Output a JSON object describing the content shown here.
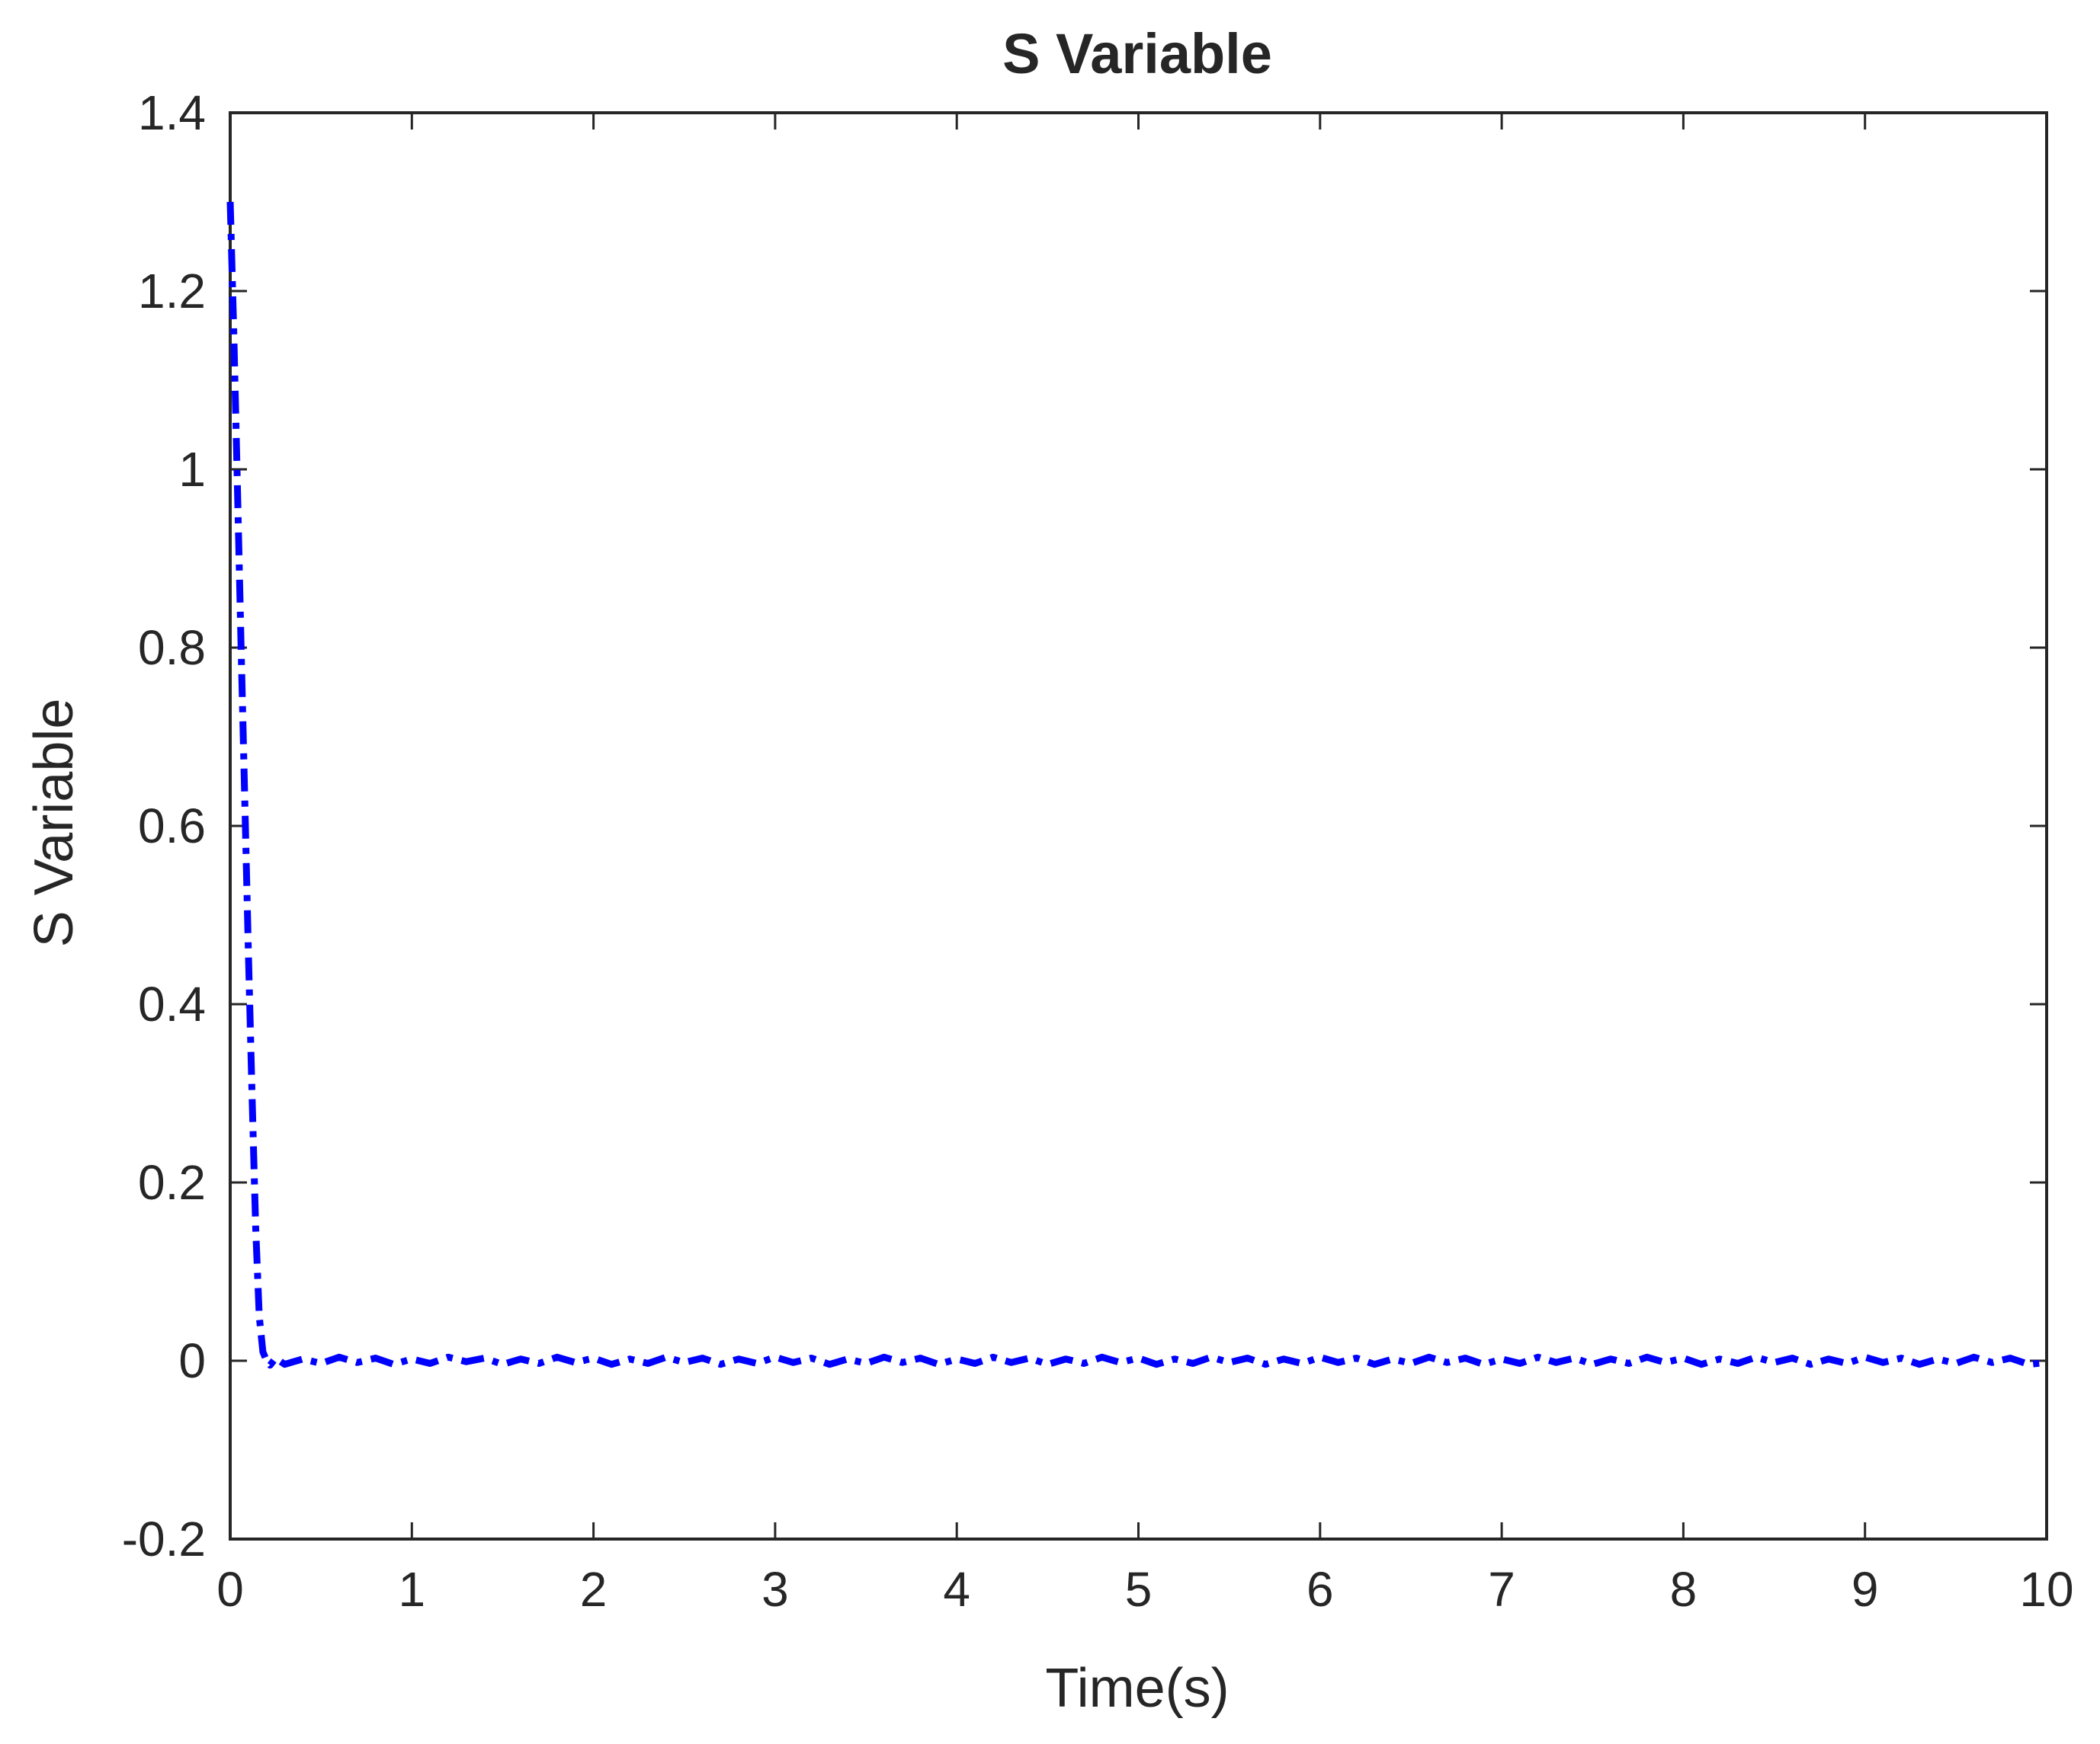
{
  "chart_data": {
    "type": "line",
    "title": "S Variable",
    "xlabel": "Time(s)",
    "ylabel": "S Variable",
    "xlim": [
      0,
      10
    ],
    "ylim": [
      -0.2,
      1.4
    ],
    "xticks": [
      0,
      1,
      2,
      3,
      4,
      5,
      6,
      7,
      8,
      9,
      10
    ],
    "xtick_labels": [
      "0",
      "1",
      "2",
      "3",
      "4",
      "5",
      "6",
      "7",
      "8",
      "9",
      "10"
    ],
    "yticks": [
      -0.2,
      0,
      0.2,
      0.4,
      0.6,
      0.8,
      1,
      1.2,
      1.4
    ],
    "ytick_labels": [
      "-0.2",
      "0",
      "0.2",
      "0.4",
      "0.6",
      "0.8",
      "1",
      "1.2",
      "1.4"
    ],
    "grid": false,
    "series": [
      {
        "color": "#0000ff",
        "line_style": "dash-dot",
        "x": [
          0,
          0.02,
          0.04,
          0.06,
          0.08,
          0.1,
          0.12,
          0.14,
          0.16,
          0.18,
          0.2,
          0.22,
          0.25,
          0.3,
          0.4,
          0.5,
          0.6,
          0.7,
          0.8,
          0.9,
          1,
          1.1,
          1.2,
          1.3,
          1.4,
          1.5,
          1.6,
          1.7,
          1.8,
          1.9,
          2,
          2.1,
          2.2,
          2.3,
          2.4,
          2.5,
          2.6,
          2.7,
          2.8,
          2.9,
          3,
          3.1,
          3.2,
          3.3,
          3.4,
          3.5,
          3.6,
          3.7,
          3.8,
          3.9,
          4,
          4.1,
          4.2,
          4.3,
          4.4,
          4.5,
          4.6,
          4.7,
          4.8,
          4.9,
          5,
          5.1,
          5.2,
          5.3,
          5.4,
          5.5,
          5.6,
          5.7,
          5.8,
          5.9,
          6,
          6.1,
          6.2,
          6.3,
          6.4,
          6.5,
          6.6,
          6.7,
          6.8,
          6.9,
          7,
          7.1,
          7.2,
          7.3,
          7.4,
          7.5,
          7.6,
          7.7,
          7.8,
          7.9,
          8,
          8.1,
          8.2,
          8.3,
          8.4,
          8.5,
          8.6,
          8.7,
          8.8,
          8.9,
          9,
          9.1,
          9.2,
          9.3,
          9.4,
          9.5,
          9.6,
          9.7,
          9.8,
          9.9,
          10
        ],
        "y": [
          1.3,
          1.15,
          0.98,
          0.8,
          0.63,
          0.46,
          0.3,
          0.15,
          0.05,
          0.01,
          0.0,
          -0.005,
          0.003,
          -0.004,
          0.002,
          -0.003,
          0.004,
          -0.002,
          0.003,
          -0.004,
          0.002,
          -0.003,
          0.004,
          -0.001,
          0.003,
          -0.004,
          0.002,
          -0.003,
          0.004,
          -0.002,
          0.003,
          -0.004,
          0.002,
          -0.003,
          0.004,
          -0.002,
          0.003,
          -0.004,
          0.002,
          -0.003,
          0.004,
          -0.002,
          0.003,
          -0.004,
          0.002,
          -0.003,
          0.004,
          -0.002,
          0.003,
          -0.004,
          0.002,
          -0.003,
          0.004,
          -0.002,
          0.003,
          -0.004,
          0.002,
          -0.003,
          0.004,
          -0.002,
          0.003,
          -0.004,
          0.002,
          -0.003,
          0.004,
          -0.002,
          0.003,
          -0.004,
          0.002,
          -0.003,
          0.004,
          -0.002,
          0.003,
          -0.004,
          0.002,
          -0.003,
          0.004,
          -0.002,
          0.003,
          -0.004,
          0.002,
          -0.003,
          0.004,
          -0.002,
          0.003,
          -0.004,
          0.002,
          -0.003,
          0.004,
          -0.002,
          0.003,
          -0.004,
          0.002,
          -0.003,
          0.004,
          -0.002,
          0.003,
          -0.004,
          0.002,
          -0.003,
          0.004,
          -0.002,
          0.003,
          -0.004,
          0.002,
          -0.003,
          0.004,
          -0.002,
          0.003,
          -0.004,
          -0.002
        ]
      }
    ]
  }
}
